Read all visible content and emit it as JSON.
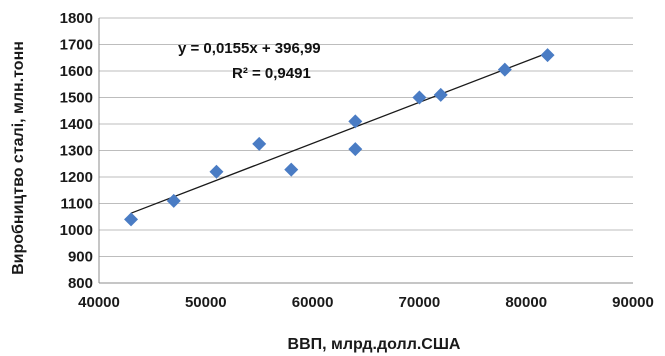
{
  "chart_data": {
    "type": "scatter",
    "title": "",
    "xlabel": "ВВП, млрд.долл.США",
    "ylabel": "Виробництво сталі, млн.тонн",
    "xlim": [
      40000,
      90000
    ],
    "ylim": [
      800,
      1800
    ],
    "x_ticks": [
      40000,
      50000,
      60000,
      70000,
      80000,
      90000
    ],
    "y_ticks": [
      800,
      900,
      1000,
      1100,
      1200,
      1300,
      1400,
      1500,
      1600,
      1700,
      1800
    ],
    "grid": true,
    "marker": "diamond",
    "series": [
      {
        "points": [
          {
            "x": 43000,
            "y": 1040
          },
          {
            "x": 47000,
            "y": 1110
          },
          {
            "x": 51000,
            "y": 1220
          },
          {
            "x": 55000,
            "y": 1325
          },
          {
            "x": 58000,
            "y": 1228
          },
          {
            "x": 64000,
            "y": 1410
          },
          {
            "x": 64000,
            "y": 1305
          },
          {
            "x": 70000,
            "y": 1500
          },
          {
            "x": 72000,
            "y": 1510
          },
          {
            "x": 78000,
            "y": 1605
          },
          {
            "x": 82000,
            "y": 1660
          }
        ]
      }
    ],
    "trendline": {
      "type": "linear",
      "slope": 0.0155,
      "intercept": 396.99,
      "x_range": [
        43000,
        82000
      ],
      "equation_label": "y = 0,0155x + 396,99",
      "r2_label": "R² = 0,9491"
    },
    "colors": {
      "marker": "#4a7cc4",
      "trendline": "#1a1a1a",
      "grid": "#bdbdbd"
    }
  }
}
